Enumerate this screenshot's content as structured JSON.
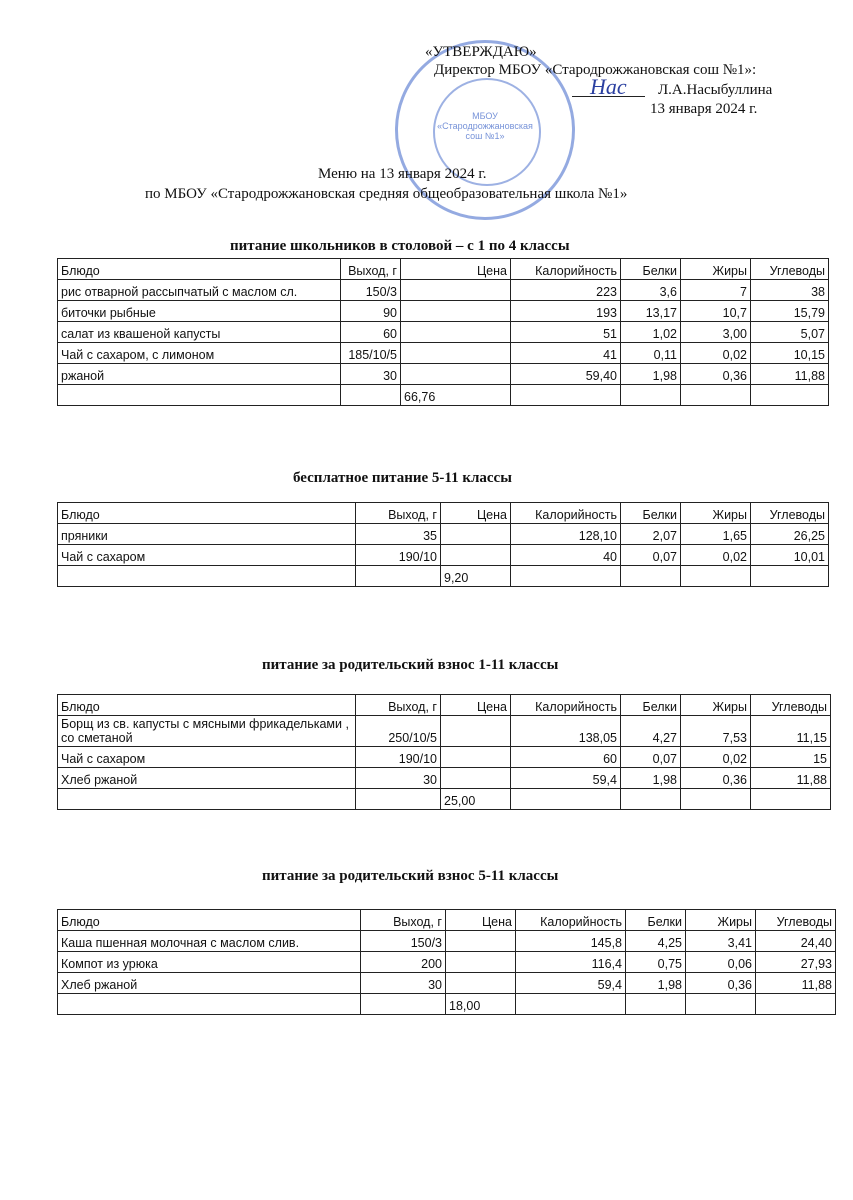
{
  "approval": {
    "title": "«УТВЕРЖДАЮ»",
    "position": "Директор МБОУ «Стародрожжановская сош №1»:",
    "name": "Л.А.Насыбуллина",
    "date": "13 января 2024 г."
  },
  "stamp": {
    "text": "МБОУ «Стародрожжановская сош №1»"
  },
  "menu_title": "Меню на 13  января 2024 г.",
  "menu_subtitle": "по МБОУ «Стародрожжановская  средняя общеобразовательная школа №1»",
  "headers": [
    "Блюдо",
    "Выход, г",
    "Цена",
    "Калорийность",
    "Белки",
    "Жиры",
    "Углеводы"
  ],
  "tables": [
    {
      "title": "питание  школьников в столовой – с 1 по 4 классы",
      "rows": [
        [
          "рис отварной рассыпчатый с маслом сл.",
          "150/3",
          "",
          "223",
          "3,6",
          "7",
          "38"
        ],
        [
          "биточки рыбные",
          "90",
          "",
          "193",
          "13,17",
          "10,7",
          "15,79"
        ],
        [
          "салат из квашеной капусты",
          "60",
          "",
          "51",
          "1,02",
          "3,00",
          "5,07"
        ],
        [
          "Чай с сахаром, с лимоном",
          "185/10/5",
          "",
          "41",
          "0,11",
          "0,02",
          "10,15"
        ],
        [
          " ржаной",
          "30",
          "",
          "59,40",
          "1,98",
          "0,36",
          "11,88"
        ],
        [
          "",
          "",
          "66,76",
          "",
          "",
          "",
          ""
        ]
      ]
    },
    {
      "title": "бесплатное питание 5-11 классы",
      "rows": [
        [
          "пряники",
          "35",
          "",
          "128,10",
          "2,07",
          "1,65",
          "26,25"
        ],
        [
          "Чай с сахаром",
          "190/10",
          "",
          "40",
          "0,07",
          "0,02",
          "10,01"
        ],
        [
          "",
          "",
          "9,20",
          "",
          "",
          "",
          ""
        ]
      ]
    },
    {
      "title": "питание за родительский взнос 1-11 классы",
      "rows": [
        [
          "Борщ из св. капусты с мясными фрикадельками , со сметаной",
          "250/10/5",
          "",
          "138,05",
          "4,27",
          "7,53",
          "11,15"
        ],
        [
          "Чай с сахаром",
          "190/10",
          "",
          "60",
          "0,07",
          "0,02",
          "15"
        ],
        [
          "Хлеб ржаной",
          "30",
          "",
          "59,4",
          "1,98",
          "0,36",
          "11,88"
        ],
        [
          "",
          "",
          "25,00",
          "",
          "",
          "",
          ""
        ]
      ]
    },
    {
      "title": "питание за родительский взнос 5-11 классы",
      "rows": [
        [
          "Каша пшенная молочная  с маслом слив.",
          "150/3",
          "",
          "145,8",
          "4,25",
          "3,41",
          "24,40"
        ],
        [
          "Компот из урюка",
          "200",
          "",
          "116,4",
          "0,75",
          "0,06",
          "27,93"
        ],
        [
          "Хлеб ржаной",
          "30",
          "",
          "59,4",
          "1,98",
          "0,36",
          "11,88"
        ],
        [
          "",
          "",
          "18,00",
          "",
          "",
          "",
          ""
        ]
      ]
    }
  ]
}
